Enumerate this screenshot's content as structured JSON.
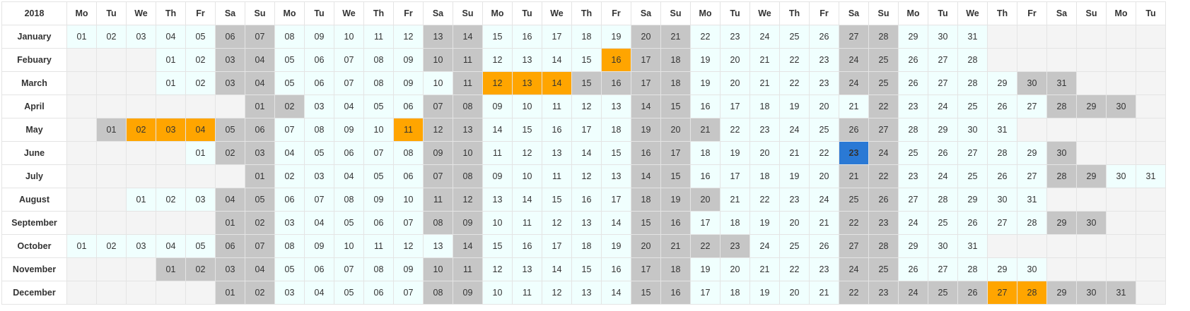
{
  "calendar": {
    "year": "2018",
    "columns": 37,
    "weekday_labels": [
      "Mo",
      "Tu",
      "We",
      "Th",
      "Fr",
      "Sa",
      "Su",
      "Mo",
      "Tu",
      "We",
      "Th",
      "Fr",
      "Sa",
      "Su",
      "Mo",
      "Tu",
      "We",
      "Th",
      "Fr",
      "Sa",
      "Su",
      "Mo",
      "Tu",
      "We",
      "Th",
      "Fr",
      "Sa",
      "Su",
      "Mo",
      "Tu",
      "We",
      "Th",
      "Fr",
      "Sa",
      "Su",
      "Mo",
      "Tu"
    ],
    "today": {
      "month": 5,
      "day": 23
    },
    "colors": {
      "weekend": "#c6c6c6",
      "holiday": "#ffa500",
      "today": "#2a79d5",
      "workday": "#f0fffe",
      "empty": "#f4f4f4"
    },
    "months": [
      {
        "name": "January",
        "offset": 0,
        "days": 31,
        "weekends": [
          6,
          7,
          13,
          14,
          20,
          21,
          27,
          28
        ],
        "holidays": []
      },
      {
        "name": "Febuary",
        "offset": 3,
        "days": 28,
        "weekends": [
          3,
          4,
          10,
          11,
          17,
          18,
          24,
          25
        ],
        "holidays": [
          16
        ]
      },
      {
        "name": "March",
        "offset": 3,
        "days": 31,
        "weekends": [
          3,
          4,
          11,
          15,
          16,
          17,
          18,
          24,
          25,
          30,
          31
        ],
        "holidays": [
          12,
          13,
          14
        ]
      },
      {
        "name": "April",
        "offset": 6,
        "days": 30,
        "weekends": [
          1,
          2,
          7,
          8,
          14,
          15,
          22,
          28,
          29,
          30
        ],
        "holidays": []
      },
      {
        "name": "May",
        "offset": 1,
        "days": 31,
        "weekends": [
          1,
          5,
          6,
          12,
          13,
          19,
          20,
          21,
          26,
          27
        ],
        "holidays": [
          2,
          3,
          4,
          11
        ]
      },
      {
        "name": "June",
        "offset": 4,
        "days": 30,
        "weekends": [
          2,
          3,
          9,
          10,
          16,
          17,
          23,
          24,
          30
        ],
        "holidays": []
      },
      {
        "name": "July",
        "offset": 6,
        "days": 31,
        "weekends": [
          1,
          7,
          8,
          14,
          15,
          21,
          22,
          28,
          29
        ],
        "holidays": []
      },
      {
        "name": "August",
        "offset": 2,
        "days": 31,
        "weekends": [
          4,
          5,
          11,
          12,
          18,
          19,
          20,
          25,
          26
        ],
        "holidays": []
      },
      {
        "name": "September",
        "offset": 5,
        "days": 30,
        "weekends": [
          1,
          2,
          8,
          9,
          15,
          16,
          22,
          23,
          29,
          30
        ],
        "holidays": []
      },
      {
        "name": "October",
        "offset": 0,
        "days": 31,
        "weekends": [
          6,
          7,
          14,
          20,
          21,
          22,
          23,
          27,
          28
        ],
        "holidays": []
      },
      {
        "name": "November",
        "offset": 3,
        "days": 30,
        "weekends": [
          1,
          2,
          3,
          4,
          10,
          11,
          17,
          18,
          24,
          25
        ],
        "holidays": []
      },
      {
        "name": "December",
        "offset": 5,
        "days": 31,
        "weekends": [
          1,
          2,
          8,
          9,
          15,
          16,
          22,
          23,
          24,
          25,
          26,
          29,
          30,
          31
        ],
        "holidays": [
          27,
          28
        ]
      }
    ]
  }
}
